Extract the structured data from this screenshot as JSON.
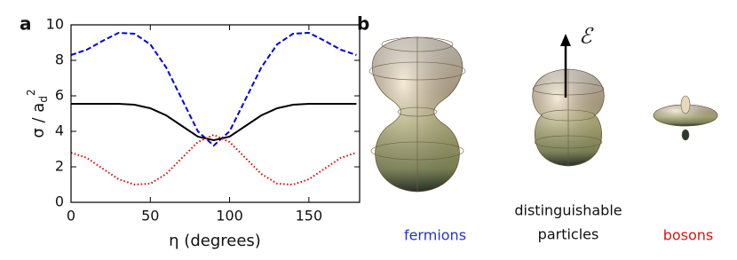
{
  "chart_data": {
    "type": "line",
    "panel_label": "a",
    "xlabel": "η (degrees)",
    "ylabel": "σ / a",
    "ylabel_sub": "d",
    "ylabel_sup": "2",
    "x": [
      0,
      10,
      20,
      30,
      40,
      50,
      60,
      70,
      80,
      90,
      100,
      110,
      120,
      130,
      140,
      150,
      160,
      170,
      180
    ],
    "series": [
      {
        "color": "#0000dd",
        "dash": "dashed",
        "values": [
          8.3,
          8.6,
          9.1,
          9.55,
          9.5,
          8.9,
          7.6,
          5.8,
          4.0,
          3.2,
          4.0,
          5.8,
          7.6,
          8.9,
          9.5,
          9.55,
          9.1,
          8.6,
          8.3
        ]
      },
      {
        "color": "#000000",
        "dash": "solid",
        "values": [
          5.55,
          5.55,
          5.55,
          5.55,
          5.5,
          5.3,
          4.9,
          4.3,
          3.7,
          3.5,
          3.7,
          4.3,
          4.9,
          5.3,
          5.5,
          5.55,
          5.55,
          5.55,
          5.55
        ]
      },
      {
        "color": "#dd0000",
        "dash": "dotted",
        "values": [
          2.8,
          2.5,
          1.9,
          1.3,
          1.0,
          1.05,
          1.6,
          2.5,
          3.4,
          3.8,
          3.4,
          2.5,
          1.6,
          1.05,
          1.0,
          1.3,
          1.9,
          2.5,
          2.8
        ]
      }
    ],
    "xlim": [
      0,
      182
    ],
    "xticks": [
      0,
      50,
      100,
      150
    ],
    "ylim": [
      0,
      10
    ],
    "yticks": [
      0,
      2,
      4,
      6,
      8,
      10
    ]
  },
  "panel_b": {
    "panel_label": "b",
    "field_label": "ℰ",
    "fermions": "fermions",
    "distinguishable": [
      "distinguishable",
      "particles"
    ],
    "bosons": "bosons"
  }
}
